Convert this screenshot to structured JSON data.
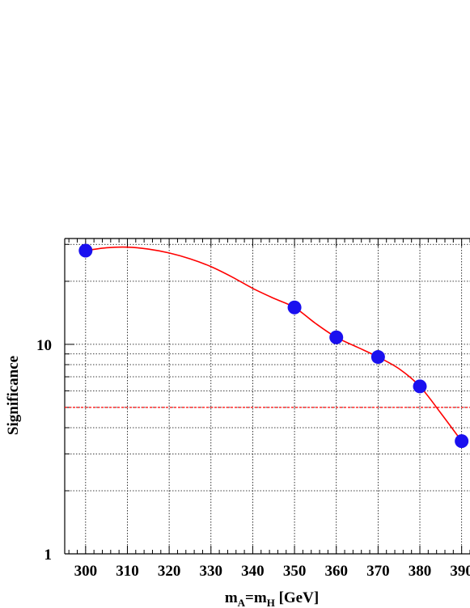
{
  "chart_data": {
    "type": "line",
    "xlabel": {
      "pre": "m",
      "sub1": "A",
      "mid": "=m",
      "sub2": "H",
      "post": " [GeV]"
    },
    "ylabel": "Significance",
    "x_scale": "linear",
    "y_scale": "log",
    "xlim": [
      295,
      392
    ],
    "ylim": [
      1,
      32
    ],
    "x_ticks": [
      300,
      310,
      320,
      330,
      340,
      350,
      360,
      370,
      380,
      390
    ],
    "y_tick_labels": [
      {
        "value": 1,
        "label": "1"
      },
      {
        "value": 10,
        "label": "10"
      }
    ],
    "y_grid": [
      2,
      3,
      4,
      5,
      6,
      7,
      8,
      9,
      10,
      20,
      30
    ],
    "grid": true,
    "series": [
      {
        "marker": "circle",
        "marker_color": "#1a10ef",
        "line_color": "#ff0000",
        "x": [
          300,
          350,
          360,
          370,
          380,
          390
        ],
        "y": [
          28,
          15,
          10.8,
          8.7,
          6.3,
          3.45
        ],
        "curve_x": [
          300,
          305,
          310,
          315,
          320,
          325,
          330,
          335,
          340,
          345,
          350,
          355,
          360,
          365,
          370,
          375,
          380,
          385,
          390
        ],
        "curve_y": [
          28,
          28.9,
          29.1,
          28.5,
          27.3,
          25.6,
          23.5,
          21,
          18.5,
          16.6,
          15,
          12.6,
          10.8,
          9.7,
          8.7,
          7.65,
          6.3,
          4.7,
          3.45
        ]
      }
    ],
    "threshold": {
      "value": 5,
      "color": "#ff0000",
      "style": "dashed"
    }
  }
}
